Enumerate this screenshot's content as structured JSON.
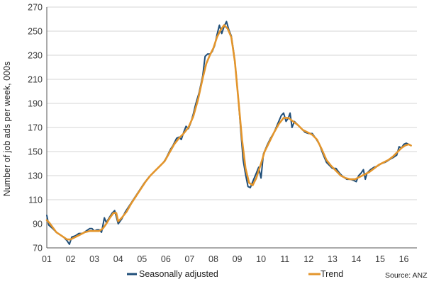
{
  "chart_data": {
    "type": "line",
    "title": "",
    "xlabel": "",
    "ylabel": "Number of job ads per week, 000s",
    "ylim": [
      70,
      270
    ],
    "yticks": [
      70,
      90,
      110,
      130,
      150,
      170,
      190,
      210,
      230,
      250,
      270
    ],
    "xlim": [
      2001.0,
      2016.55
    ],
    "xticks": [
      {
        "value": 2001,
        "label": "01"
      },
      {
        "value": 2002,
        "label": "02"
      },
      {
        "value": 2003,
        "label": "03"
      },
      {
        "value": 2004,
        "label": "04"
      },
      {
        "value": 2005,
        "label": "05"
      },
      {
        "value": 2006,
        "label": "06"
      },
      {
        "value": 2007,
        "label": "07"
      },
      {
        "value": 2008,
        "label": "08"
      },
      {
        "value": 2009,
        "label": "09"
      },
      {
        "value": 2010,
        "label": "10"
      },
      {
        "value": 2011,
        "label": "11"
      },
      {
        "value": 2012,
        "label": "12"
      },
      {
        "value": 2013,
        "label": "13"
      },
      {
        "value": 2014,
        "label": "14"
      },
      {
        "value": 2015,
        "label": "15"
      },
      {
        "value": 2016,
        "label": "16"
      }
    ],
    "grid": "horizontal",
    "legend_position": "bottom",
    "source": "Source: ANZ",
    "series": [
      {
        "name": "Seasonally adjusted",
        "color": "#1f4e79",
        "points": [
          [
            2001.0,
            97
          ],
          [
            2001.08,
            89
          ],
          [
            2001.25,
            86
          ],
          [
            2001.4,
            83
          ],
          [
            2001.55,
            81
          ],
          [
            2001.7,
            79
          ],
          [
            2001.85,
            76
          ],
          [
            2001.95,
            73
          ],
          [
            2002.05,
            79
          ],
          [
            2002.2,
            80
          ],
          [
            2002.35,
            82
          ],
          [
            2002.5,
            82
          ],
          [
            2002.65,
            84
          ],
          [
            2002.8,
            86
          ],
          [
            2002.9,
            86
          ],
          [
            2003.0,
            84
          ],
          [
            2003.1,
            85
          ],
          [
            2003.2,
            85
          ],
          [
            2003.3,
            83
          ],
          [
            2003.42,
            95
          ],
          [
            2003.5,
            91
          ],
          [
            2003.65,
            96
          ],
          [
            2003.75,
            99
          ],
          [
            2003.85,
            101
          ],
          [
            2004.0,
            90
          ],
          [
            2004.15,
            94
          ],
          [
            2004.3,
            100
          ],
          [
            2004.5,
            106
          ],
          [
            2004.7,
            112
          ],
          [
            2004.9,
            118
          ],
          [
            2005.1,
            124
          ],
          [
            2005.3,
            129
          ],
          [
            2005.5,
            133
          ],
          [
            2005.7,
            137
          ],
          [
            2005.9,
            141
          ],
          [
            2006.0,
            144
          ],
          [
            2006.2,
            152
          ],
          [
            2006.3,
            155
          ],
          [
            2006.45,
            161
          ],
          [
            2006.55,
            162
          ],
          [
            2006.65,
            160
          ],
          [
            2006.75,
            166
          ],
          [
            2006.85,
            171
          ],
          [
            2006.95,
            169
          ],
          [
            2007.05,
            174
          ],
          [
            2007.15,
            181
          ],
          [
            2007.25,
            189
          ],
          [
            2007.4,
            199
          ],
          [
            2007.55,
            213
          ],
          [
            2007.65,
            229
          ],
          [
            2007.75,
            231
          ],
          [
            2007.85,
            231
          ],
          [
            2007.95,
            233
          ],
          [
            2008.05,
            238
          ],
          [
            2008.15,
            247
          ],
          [
            2008.25,
            255
          ],
          [
            2008.35,
            248
          ],
          [
            2008.45,
            254
          ],
          [
            2008.55,
            258
          ],
          [
            2008.65,
            251
          ],
          [
            2008.75,
            246
          ],
          [
            2008.85,
            233
          ],
          [
            2008.95,
            215
          ],
          [
            2009.05,
            193
          ],
          [
            2009.15,
            167
          ],
          [
            2009.25,
            143
          ],
          [
            2009.35,
            131
          ],
          [
            2009.45,
            121
          ],
          [
            2009.55,
            120
          ],
          [
            2009.65,
            125
          ],
          [
            2009.8,
            132
          ],
          [
            2009.9,
            137
          ],
          [
            2010.0,
            128
          ],
          [
            2010.1,
            148
          ],
          [
            2010.25,
            155
          ],
          [
            2010.4,
            161
          ],
          [
            2010.55,
            166
          ],
          [
            2010.7,
            173
          ],
          [
            2010.85,
            180
          ],
          [
            2010.95,
            182
          ],
          [
            2011.05,
            175
          ],
          [
            2011.15,
            178
          ],
          [
            2011.22,
            182
          ],
          [
            2011.3,
            170
          ],
          [
            2011.4,
            175
          ],
          [
            2011.55,
            172
          ],
          [
            2011.7,
            169
          ],
          [
            2011.85,
            166
          ],
          [
            2012.0,
            165
          ],
          [
            2012.15,
            165
          ],
          [
            2012.3,
            161
          ],
          [
            2012.45,
            156
          ],
          [
            2012.6,
            148
          ],
          [
            2012.75,
            141
          ],
          [
            2012.9,
            138
          ],
          [
            2013.0,
            136
          ],
          [
            2013.15,
            136
          ],
          [
            2013.3,
            132
          ],
          [
            2013.45,
            129
          ],
          [
            2013.6,
            127
          ],
          [
            2013.75,
            127
          ],
          [
            2013.9,
            126
          ],
          [
            2014.0,
            125
          ],
          [
            2014.1,
            130
          ],
          [
            2014.2,
            132
          ],
          [
            2014.3,
            135
          ],
          [
            2014.38,
            127
          ],
          [
            2014.45,
            132
          ],
          [
            2014.6,
            135
          ],
          [
            2014.75,
            137
          ],
          [
            2014.9,
            138
          ],
          [
            2015.05,
            140
          ],
          [
            2015.2,
            141
          ],
          [
            2015.3,
            142
          ],
          [
            2015.45,
            144
          ],
          [
            2015.55,
            145
          ],
          [
            2015.7,
            147
          ],
          [
            2015.8,
            154
          ],
          [
            2015.9,
            153
          ],
          [
            2016.0,
            156
          ],
          [
            2016.1,
            157
          ],
          [
            2016.2,
            156
          ],
          [
            2016.3,
            155
          ]
        ]
      },
      {
        "name": "Trend",
        "color": "#e3952c",
        "points": [
          [
            2001.0,
            93
          ],
          [
            2001.1,
            91
          ],
          [
            2001.25,
            87
          ],
          [
            2001.4,
            83
          ],
          [
            2001.55,
            81
          ],
          [
            2001.7,
            79
          ],
          [
            2001.85,
            77
          ],
          [
            2002.0,
            77
          ],
          [
            2002.2,
            79
          ],
          [
            2002.4,
            81
          ],
          [
            2002.6,
            83
          ],
          [
            2002.8,
            84
          ],
          [
            2003.0,
            84
          ],
          [
            2003.2,
            84
          ],
          [
            2003.35,
            86
          ],
          [
            2003.5,
            90
          ],
          [
            2003.65,
            95
          ],
          [
            2003.8,
            99
          ],
          [
            2003.92,
            99
          ],
          [
            2004.0,
            92
          ],
          [
            2004.15,
            95
          ],
          [
            2004.35,
            100
          ],
          [
            2004.55,
            107
          ],
          [
            2004.75,
            113
          ],
          [
            2004.95,
            119
          ],
          [
            2005.15,
            125
          ],
          [
            2005.35,
            130
          ],
          [
            2005.55,
            134
          ],
          [
            2005.75,
            138
          ],
          [
            2005.95,
            142
          ],
          [
            2006.15,
            149
          ],
          [
            2006.35,
            156
          ],
          [
            2006.55,
            161
          ],
          [
            2006.75,
            165
          ],
          [
            2006.95,
            170
          ],
          [
            2007.15,
            179
          ],
          [
            2007.35,
            193
          ],
          [
            2007.55,
            211
          ],
          [
            2007.7,
            223
          ],
          [
            2007.85,
            230
          ],
          [
            2008.0,
            236
          ],
          [
            2008.15,
            245
          ],
          [
            2008.3,
            251
          ],
          [
            2008.45,
            255
          ],
          [
            2008.6,
            252
          ],
          [
            2008.75,
            245
          ],
          [
            2008.9,
            225
          ],
          [
            2009.05,
            193
          ],
          [
            2009.2,
            160
          ],
          [
            2009.35,
            136
          ],
          [
            2009.5,
            124
          ],
          [
            2009.65,
            122
          ],
          [
            2009.8,
            128
          ],
          [
            2010.0,
            140
          ],
          [
            2010.15,
            150
          ],
          [
            2010.35,
            158
          ],
          [
            2010.55,
            166
          ],
          [
            2010.75,
            173
          ],
          [
            2010.95,
            178
          ],
          [
            2011.15,
            178
          ],
          [
            2011.35,
            175
          ],
          [
            2011.55,
            172
          ],
          [
            2011.75,
            168
          ],
          [
            2011.95,
            166
          ],
          [
            2012.15,
            164
          ],
          [
            2012.35,
            160
          ],
          [
            2012.55,
            152
          ],
          [
            2012.75,
            143
          ],
          [
            2012.95,
            138
          ],
          [
            2013.15,
            134
          ],
          [
            2013.35,
            130
          ],
          [
            2013.55,
            128
          ],
          [
            2013.75,
            127
          ],
          [
            2013.95,
            127
          ],
          [
            2014.15,
            129
          ],
          [
            2014.35,
            131
          ],
          [
            2014.55,
            133
          ],
          [
            2014.75,
            136
          ],
          [
            2014.95,
            139
          ],
          [
            2015.15,
            141
          ],
          [
            2015.35,
            143
          ],
          [
            2015.55,
            146
          ],
          [
            2015.75,
            150
          ],
          [
            2015.9,
            153
          ],
          [
            2016.05,
            155
          ],
          [
            2016.2,
            156
          ],
          [
            2016.3,
            155
          ]
        ]
      }
    ]
  }
}
